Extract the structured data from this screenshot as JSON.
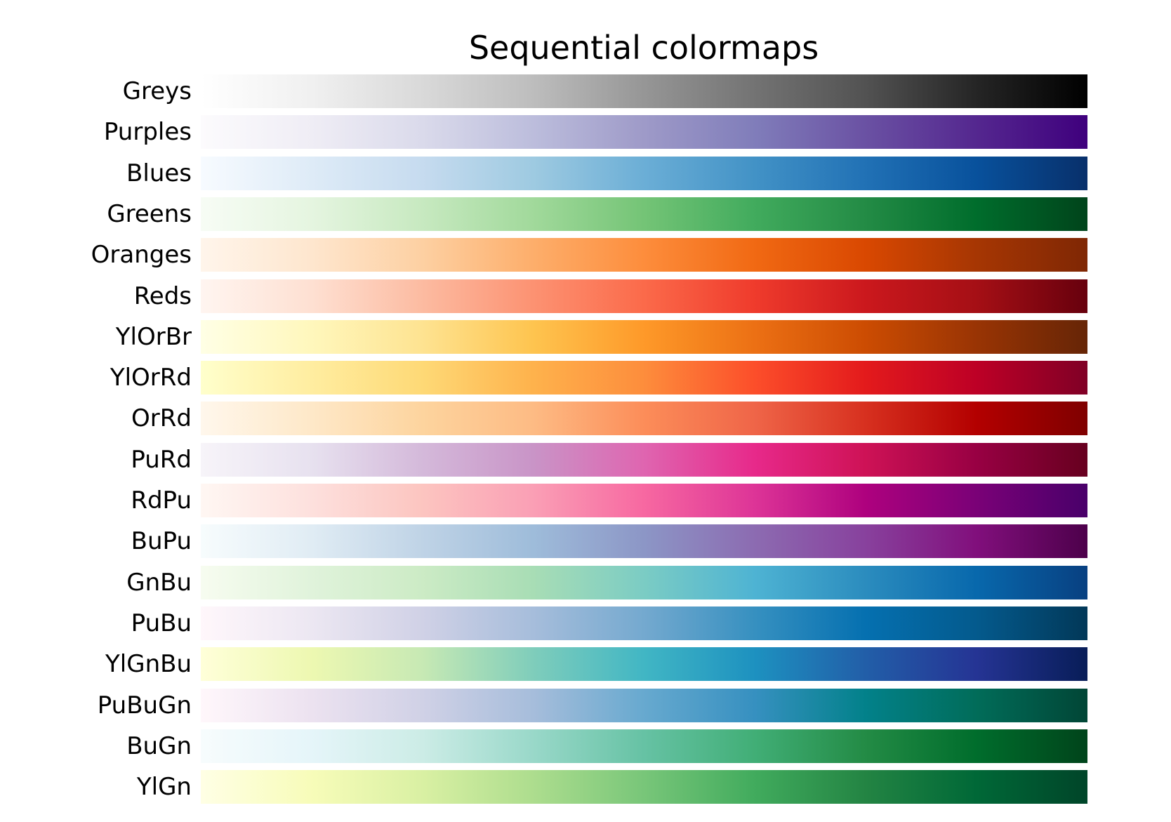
{
  "chart_data": {
    "type": "heatmap",
    "title": "Sequential colormaps",
    "xlabel": "",
    "ylabel": "",
    "grid": false,
    "legend": null,
    "colormaps": [
      {
        "name": "Greys",
        "colors": [
          "#ffffff",
          "#f0f0f0",
          "#d9d9d9",
          "#bdbdbd",
          "#969696",
          "#737373",
          "#525252",
          "#252525",
          "#000000"
        ]
      },
      {
        "name": "Purples",
        "colors": [
          "#fcfbfd",
          "#efedf5",
          "#dadaeb",
          "#bcbddc",
          "#9e9ac8",
          "#807dba",
          "#6a51a3",
          "#54278f",
          "#3f007d"
        ]
      },
      {
        "name": "Blues",
        "colors": [
          "#f7fbff",
          "#deebf7",
          "#c6dbef",
          "#9ecae1",
          "#6baed6",
          "#4292c6",
          "#2171b5",
          "#08519c",
          "#08306b"
        ]
      },
      {
        "name": "Greens",
        "colors": [
          "#f7fcf5",
          "#e5f5e0",
          "#c7e9c0",
          "#a1d99b",
          "#74c476",
          "#41ab5d",
          "#238b45",
          "#006d2c",
          "#00441b"
        ]
      },
      {
        "name": "Oranges",
        "colors": [
          "#fff5eb",
          "#fee6ce",
          "#fdd0a2",
          "#fdae6b",
          "#fd8d3c",
          "#f16913",
          "#d94801",
          "#a63603",
          "#7f2704"
        ]
      },
      {
        "name": "Reds",
        "colors": [
          "#fff5f0",
          "#fee0d2",
          "#fcbba1",
          "#fc9272",
          "#fb6a4a",
          "#ef3b2c",
          "#cb181d",
          "#a50f15",
          "#67000d"
        ]
      },
      {
        "name": "YlOrBr",
        "colors": [
          "#ffffe5",
          "#fff7bc",
          "#fee391",
          "#fec44f",
          "#fe9929",
          "#ec7014",
          "#cc4c02",
          "#993404",
          "#662506"
        ]
      },
      {
        "name": "YlOrRd",
        "colors": [
          "#ffffcc",
          "#ffeda0",
          "#fed976",
          "#feb24c",
          "#fd8d3c",
          "#fc4e2a",
          "#e31a1c",
          "#bd0026",
          "#800026"
        ]
      },
      {
        "name": "OrRd",
        "colors": [
          "#fff7ec",
          "#fee8c8",
          "#fdd49e",
          "#fdbb84",
          "#fc8d59",
          "#ef6548",
          "#d7301f",
          "#b30000",
          "#7f0000"
        ]
      },
      {
        "name": "PuRd",
        "colors": [
          "#f7f4f9",
          "#e7e1ef",
          "#d4b9da",
          "#c994c7",
          "#df65b0",
          "#e7298a",
          "#ce1256",
          "#980043",
          "#67001f"
        ]
      },
      {
        "name": "RdPu",
        "colors": [
          "#fff7f3",
          "#fde0dd",
          "#fcc5c0",
          "#fa9fb5",
          "#f768a1",
          "#dd3497",
          "#ae017e",
          "#7a0177",
          "#49006a"
        ]
      },
      {
        "name": "BuPu",
        "colors": [
          "#f7fcfd",
          "#e0ecf4",
          "#bfd3e6",
          "#9ebcda",
          "#8c96c6",
          "#8c6bb1",
          "#88419d",
          "#810f7c",
          "#4d004b"
        ]
      },
      {
        "name": "GnBu",
        "colors": [
          "#f7fcf0",
          "#e0f3db",
          "#ccebc5",
          "#a8ddb5",
          "#7bccc4",
          "#4eb3d3",
          "#2b8cbe",
          "#0868ac",
          "#084081"
        ]
      },
      {
        "name": "PuBu",
        "colors": [
          "#fff7fb",
          "#ece7f2",
          "#d0d1e6",
          "#a6bddb",
          "#74a9cf",
          "#3690c0",
          "#0570b0",
          "#045a8d",
          "#023858"
        ]
      },
      {
        "name": "YlGnBu",
        "colors": [
          "#ffffd9",
          "#edf8b1",
          "#c7e9b4",
          "#7fcdbb",
          "#41b6c4",
          "#1d91c0",
          "#225ea8",
          "#253494",
          "#081d58"
        ]
      },
      {
        "name": "PuBuGn",
        "colors": [
          "#fff7fb",
          "#ece2f0",
          "#d0d1e6",
          "#a6bddb",
          "#67a9cf",
          "#3690c0",
          "#02818a",
          "#016c59",
          "#014636"
        ]
      },
      {
        "name": "BuGn",
        "colors": [
          "#f7fcfd",
          "#e5f5f9",
          "#ccece6",
          "#99d8c9",
          "#66c2a4",
          "#41ae76",
          "#238b45",
          "#006d2c",
          "#00441b"
        ]
      },
      {
        "name": "YlGn",
        "colors": [
          "#ffffe5",
          "#f7fcb9",
          "#d9f0a3",
          "#addd8e",
          "#78c679",
          "#41ab5d",
          "#238443",
          "#006837",
          "#004529"
        ]
      }
    ],
    "categories": [
      "Greys",
      "Purples",
      "Blues",
      "Greens",
      "Oranges",
      "Reds",
      "YlOrBr",
      "YlOrRd",
      "OrRd",
      "PuRd",
      "RdPu",
      "BuPu",
      "GnBu",
      "PuBu",
      "YlGnBu",
      "PuBuGn",
      "BuGn",
      "YlGn"
    ]
  }
}
